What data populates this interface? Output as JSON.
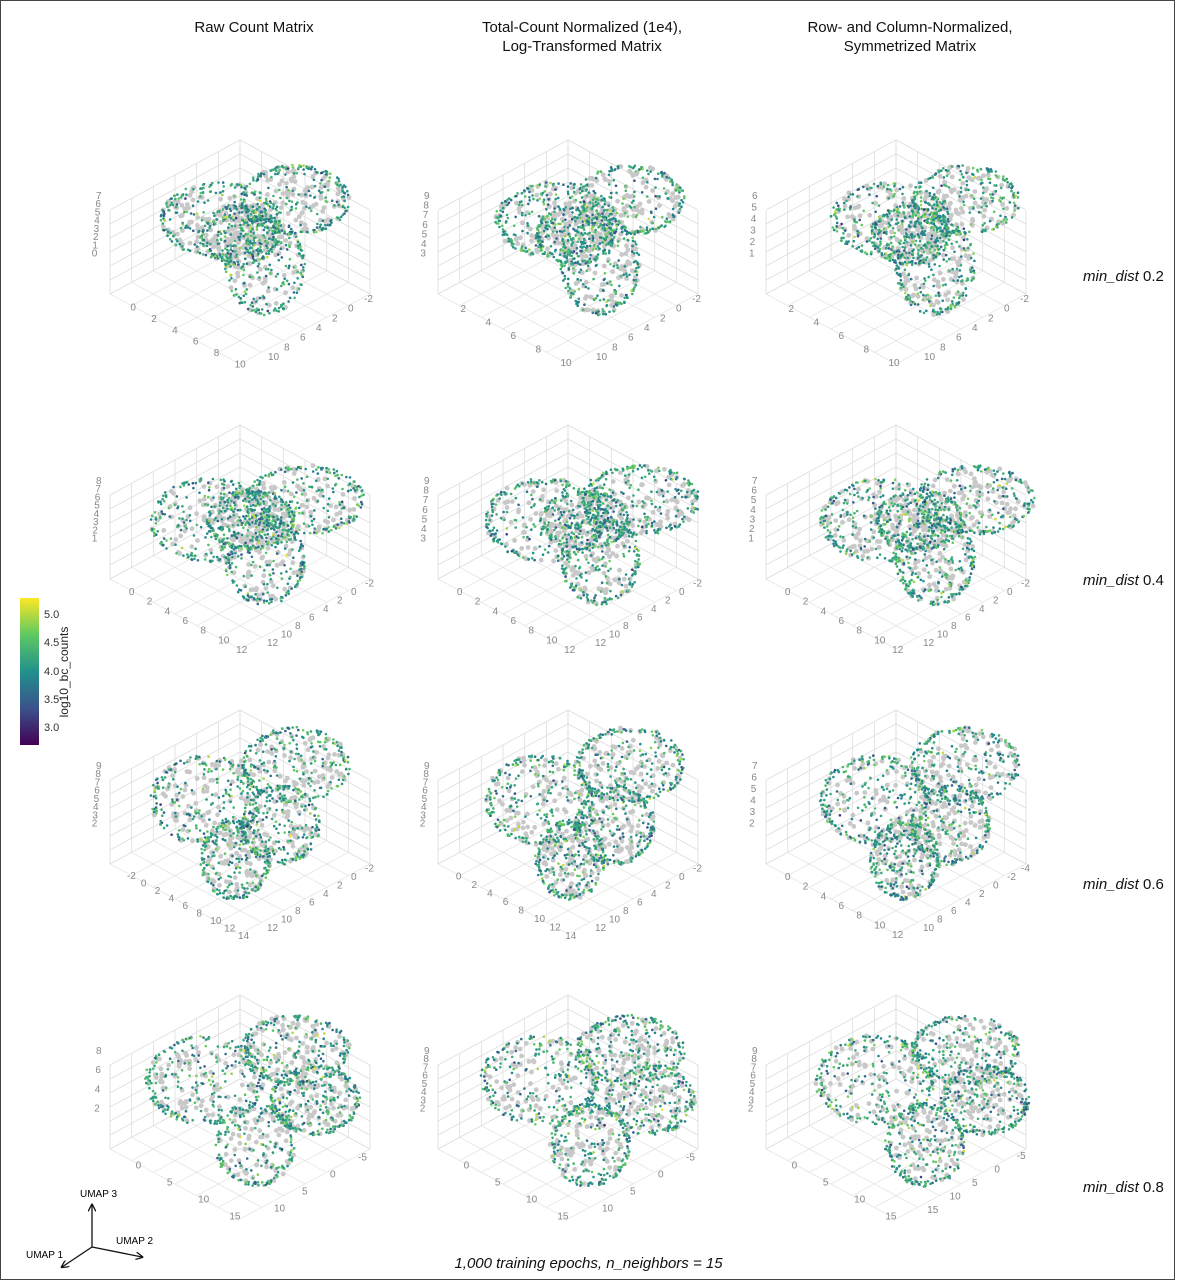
{
  "chart_data": {
    "type": "scatter",
    "projection": "3d",
    "column_titles": [
      [
        "Raw Count Matrix"
      ],
      [
        "Total-Count Normalized (1e4),",
        "Log-Transformed Matrix"
      ],
      [
        "Row- and Column-Normalized,",
        "Symmetrized Matrix"
      ]
    ],
    "row_labels": [
      {
        "param": "min_dist",
        "value": "0.2"
      },
      {
        "param": "min_dist",
        "value": "0.4"
      },
      {
        "param": "min_dist",
        "value": "0.6"
      },
      {
        "param": "min_dist",
        "value": "0.8"
      }
    ],
    "colorbar": {
      "label": "log10_bc_counts",
      "ticks": [
        "5.0",
        "4.5",
        "4.0",
        "3.5",
        "3.0"
      ],
      "tick_values": [
        5.0,
        4.5,
        4.0,
        3.5,
        3.0
      ],
      "range": [
        2.7,
        5.3
      ],
      "colormap": [
        "#440154",
        "#3b528b",
        "#21918c",
        "#5ec962",
        "#fde725"
      ]
    },
    "axes": {
      "x": "UMAP 1",
      "y": "UMAP 2",
      "z": "UMAP 3"
    },
    "grid": true,
    "null_color": "#c8c8c8",
    "panels": [
      [
        {
          "z_ticks": [
            "7",
            "6",
            "5",
            "4",
            "3",
            "2",
            "1",
            "0"
          ],
          "x_ticks": [
            "0",
            "2",
            "4",
            "6",
            "8",
            "10"
          ],
          "y_ticks": [
            "10",
            "8",
            "6",
            "4",
            "2",
            "0",
            "-2"
          ]
        },
        {
          "z_ticks": [
            "9",
            "8",
            "7",
            "6",
            "5",
            "4",
            "3"
          ],
          "x_ticks": [
            "2",
            "4",
            "6",
            "8",
            "10"
          ],
          "y_ticks": [
            "10",
            "8",
            "6",
            "4",
            "2",
            "0",
            "-2"
          ]
        },
        {
          "z_ticks": [
            "6",
            "5",
            "4",
            "3",
            "2",
            "1"
          ],
          "x_ticks": [
            "2",
            "4",
            "6",
            "8",
            "10"
          ],
          "y_ticks": [
            "10",
            "8",
            "6",
            "4",
            "2",
            "0",
            "-2"
          ]
        }
      ],
      [
        {
          "z_ticks": [
            "8",
            "7",
            "6",
            "5",
            "4",
            "3",
            "2",
            "1"
          ],
          "x_ticks": [
            "0",
            "2",
            "4",
            "6",
            "8",
            "10",
            "12"
          ],
          "y_ticks": [
            "12",
            "10",
            "8",
            "6",
            "4",
            "2",
            "0",
            "-2"
          ]
        },
        {
          "z_ticks": [
            "9",
            "8",
            "7",
            "6",
            "5",
            "4",
            "3"
          ],
          "x_ticks": [
            "0",
            "2",
            "4",
            "6",
            "8",
            "10",
            "12"
          ],
          "y_ticks": [
            "12",
            "10",
            "8",
            "6",
            "4",
            "2",
            "0",
            "-2"
          ]
        },
        {
          "z_ticks": [
            "7",
            "6",
            "5",
            "4",
            "3",
            "2",
            "1"
          ],
          "x_ticks": [
            "0",
            "2",
            "4",
            "6",
            "8",
            "10",
            "12"
          ],
          "y_ticks": [
            "12",
            "10",
            "8",
            "6",
            "4",
            "2",
            "0",
            "-2"
          ]
        }
      ],
      [
        {
          "z_ticks": [
            "9",
            "8",
            "7",
            "6",
            "5",
            "4",
            "3",
            "2"
          ],
          "x_ticks": [
            "-2",
            "0",
            "2",
            "4",
            "6",
            "8",
            "10",
            "12",
            "14"
          ],
          "y_ticks": [
            "12",
            "10",
            "8",
            "6",
            "4",
            "2",
            "0",
            "-2"
          ]
        },
        {
          "z_ticks": [
            "9",
            "8",
            "7",
            "6",
            "5",
            "4",
            "3",
            "2"
          ],
          "x_ticks": [
            "0",
            "2",
            "4",
            "6",
            "8",
            "10",
            "12",
            "14"
          ],
          "y_ticks": [
            "12",
            "10",
            "8",
            "6",
            "4",
            "2",
            "0",
            "-2"
          ]
        },
        {
          "z_ticks": [
            "7",
            "6",
            "5",
            "4",
            "3",
            "2"
          ],
          "x_ticks": [
            "0",
            "2",
            "4",
            "6",
            "8",
            "10",
            "12"
          ],
          "y_ticks": [
            "10",
            "8",
            "6",
            "4",
            "2",
            "0",
            "-2",
            "-4"
          ]
        }
      ],
      [
        {
          "z_ticks": [
            "8",
            "6",
            "4",
            "2"
          ],
          "x_ticks": [
            "0",
            "5",
            "10",
            "15"
          ],
          "y_ticks": [
            "10",
            "5",
            "0",
            "-5"
          ]
        },
        {
          "z_ticks": [
            "9",
            "8",
            "7",
            "6",
            "5",
            "4",
            "3",
            "2"
          ],
          "x_ticks": [
            "0",
            "5",
            "10",
            "15"
          ],
          "y_ticks": [
            "10",
            "5",
            "0",
            "-5"
          ]
        },
        {
          "z_ticks": [
            "9",
            "8",
            "7",
            "6",
            "5",
            "4",
            "3",
            "2"
          ],
          "x_ticks": [
            "0",
            "5",
            "10",
            "15"
          ],
          "y_ticks": [
            "15",
            "10",
            "5",
            "0",
            "-5"
          ]
        }
      ]
    ]
  },
  "triad": {
    "z": "UMAP 3",
    "y": "UMAP 2",
    "x": "UMAP 1"
  },
  "footer": "1,000 training epochs, n_neighbors = 15"
}
